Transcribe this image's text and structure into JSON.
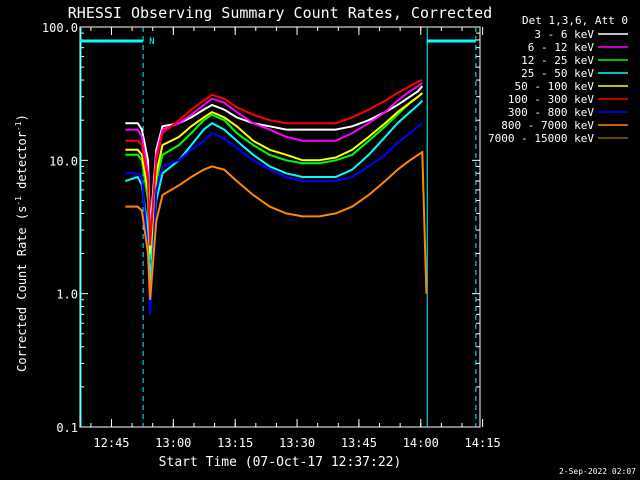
{
  "chart_data": {
    "type": "line",
    "title": "RHESSI Observing Summary Count Rates, Corrected",
    "xlabel": "Start Time (07-Oct-17 12:37:22)",
    "ylabel_main": "Corrected Count Rate (s",
    "ylabel_sup1": "-1",
    "ylabel_mid": " detector",
    "ylabel_sup2": "-1",
    "ylabel_end": ")",
    "y_scale": "log",
    "ylim": [
      0.1,
      100.0
    ],
    "y_ticks": [
      "0.1",
      "1.0",
      "10.0",
      "100.0"
    ],
    "x_ticks": [
      "12:45",
      "13:00",
      "13:15",
      "13:30",
      "13:45",
      "14:00",
      "14:15"
    ],
    "xlim_minutes_after_start": [
      0,
      97
    ],
    "legend_title": "Det 1,3,6, Att 0",
    "legend_position": "right",
    "timestamp": "2-Sep-2022 02:07",
    "markers": {
      "night_label": "N",
      "solid_lines_minutes": [
        0,
        84.2
      ],
      "dashed_lines_minutes": [
        15.3,
        96
      ]
    },
    "series": [
      {
        "name": "3 - 6 keV",
        "color": "#ffffff",
        "points": [
          [
            11,
            19
          ],
          [
            14,
            19
          ],
          [
            15,
            17
          ],
          [
            16.5,
            10
          ],
          [
            17,
            3
          ],
          [
            18.5,
            12
          ],
          [
            20,
            18
          ],
          [
            24,
            19
          ],
          [
            27,
            21
          ],
          [
            30,
            24
          ],
          [
            32,
            26
          ],
          [
            35,
            24
          ],
          [
            38,
            21
          ],
          [
            42,
            19
          ],
          [
            46,
            18
          ],
          [
            50,
            17
          ],
          [
            54,
            17
          ],
          [
            58,
            17
          ],
          [
            62,
            17
          ],
          [
            66,
            18
          ],
          [
            70,
            20
          ],
          [
            74,
            23
          ],
          [
            77,
            26
          ],
          [
            80,
            30
          ],
          [
            82,
            33
          ],
          [
            83,
            36
          ]
        ]
      },
      {
        "name": "6 - 12 keV",
        "color": "#ff00ff",
        "points": [
          [
            11,
            17
          ],
          [
            14,
            17
          ],
          [
            15,
            15
          ],
          [
            16.5,
            8
          ],
          [
            17,
            2.5
          ],
          [
            18.5,
            11
          ],
          [
            20,
            17
          ],
          [
            24,
            19
          ],
          [
            27,
            22
          ],
          [
            30,
            26
          ],
          [
            32,
            29
          ],
          [
            35,
            27
          ],
          [
            38,
            23
          ],
          [
            42,
            19
          ],
          [
            46,
            17
          ],
          [
            50,
            15
          ],
          [
            54,
            14
          ],
          [
            58,
            14
          ],
          [
            62,
            14
          ],
          [
            66,
            16
          ],
          [
            70,
            19
          ],
          [
            74,
            23
          ],
          [
            77,
            28
          ],
          [
            80,
            33
          ],
          [
            82,
            36
          ],
          [
            83,
            38
          ]
        ]
      },
      {
        "name": "12 - 25 keV",
        "color": "#00ff00",
        "points": [
          [
            11,
            11
          ],
          [
            14,
            11
          ],
          [
            15,
            10
          ],
          [
            16.5,
            5
          ],
          [
            17,
            1.8
          ],
          [
            18.5,
            7
          ],
          [
            20,
            11
          ],
          [
            24,
            13
          ],
          [
            27,
            16
          ],
          [
            30,
            20
          ],
          [
            32,
            22
          ],
          [
            35,
            20
          ],
          [
            38,
            16
          ],
          [
            42,
            13
          ],
          [
            46,
            11
          ],
          [
            50,
            10
          ],
          [
            54,
            9.5
          ],
          [
            58,
            9.5
          ],
          [
            62,
            10
          ],
          [
            66,
            11
          ],
          [
            70,
            14
          ],
          [
            74,
            18
          ],
          [
            77,
            22
          ],
          [
            80,
            27
          ],
          [
            82,
            30
          ],
          [
            83,
            32
          ]
        ]
      },
      {
        "name": "25 - 50 keV",
        "color": "#00ffff",
        "points": [
          [
            11,
            7
          ],
          [
            14,
            7.5
          ],
          [
            15,
            6.5
          ],
          [
            16.5,
            3
          ],
          [
            17,
            1.2
          ],
          [
            18.5,
            5
          ],
          [
            20,
            8
          ],
          [
            24,
            10
          ],
          [
            27,
            13
          ],
          [
            30,
            17
          ],
          [
            32,
            19
          ],
          [
            35,
            17
          ],
          [
            38,
            14
          ],
          [
            42,
            11
          ],
          [
            46,
            9
          ],
          [
            50,
            8
          ],
          [
            54,
            7.5
          ],
          [
            58,
            7.5
          ],
          [
            62,
            7.5
          ],
          [
            66,
            8.5
          ],
          [
            70,
            11
          ],
          [
            74,
            15
          ],
          [
            77,
            19
          ],
          [
            80,
            23
          ],
          [
            82,
            26
          ],
          [
            83,
            28
          ]
        ]
      },
      {
        "name": "50 - 100 keV",
        "color": "#ffff00",
        "points": [
          [
            11,
            12
          ],
          [
            14,
            12
          ],
          [
            15,
            11
          ],
          [
            16.5,
            6
          ],
          [
            17,
            2
          ],
          [
            18.5,
            8
          ],
          [
            20,
            13
          ],
          [
            24,
            15
          ],
          [
            27,
            18
          ],
          [
            30,
            21
          ],
          [
            32,
            23
          ],
          [
            35,
            21
          ],
          [
            38,
            18
          ],
          [
            42,
            14
          ],
          [
            46,
            12
          ],
          [
            50,
            11
          ],
          [
            54,
            10
          ],
          [
            58,
            10
          ],
          [
            62,
            10.5
          ],
          [
            66,
            12
          ],
          [
            70,
            15
          ],
          [
            74,
            19
          ],
          [
            77,
            23
          ],
          [
            80,
            27
          ],
          [
            82,
            30
          ],
          [
            83,
            32
          ]
        ]
      },
      {
        "name": "100 - 300 keV",
        "color": "#ff0000",
        "points": [
          [
            11,
            14
          ],
          [
            14,
            14
          ],
          [
            15,
            13
          ],
          [
            16.5,
            7
          ],
          [
            17,
            2.3
          ],
          [
            18.5,
            10
          ],
          [
            20,
            16
          ],
          [
            24,
            20
          ],
          [
            27,
            24
          ],
          [
            30,
            28
          ],
          [
            32,
            31
          ],
          [
            35,
            29
          ],
          [
            38,
            25
          ],
          [
            42,
            22
          ],
          [
            46,
            20
          ],
          [
            50,
            19
          ],
          [
            54,
            19
          ],
          [
            58,
            19
          ],
          [
            62,
            19
          ],
          [
            66,
            21
          ],
          [
            70,
            24
          ],
          [
            74,
            28
          ],
          [
            77,
            32
          ],
          [
            80,
            36
          ],
          [
            82,
            39
          ],
          [
            83,
            40
          ]
        ]
      },
      {
        "name": "300 - 800 keV",
        "color": "#0000ff",
        "points": [
          [
            11,
            8
          ],
          [
            14,
            8
          ],
          [
            15,
            7.5
          ],
          [
            16.5,
            2
          ],
          [
            17,
            0.7
          ],
          [
            18.5,
            6
          ],
          [
            20,
            9
          ],
          [
            24,
            10
          ],
          [
            27,
            12
          ],
          [
            30,
            14
          ],
          [
            32,
            16
          ],
          [
            35,
            14.5
          ],
          [
            38,
            12.5
          ],
          [
            42,
            10
          ],
          [
            46,
            8.5
          ],
          [
            50,
            7.5
          ],
          [
            54,
            7
          ],
          [
            58,
            7
          ],
          [
            62,
            7
          ],
          [
            66,
            7.5
          ],
          [
            70,
            9
          ],
          [
            74,
            11
          ],
          [
            77,
            13.5
          ],
          [
            80,
            16
          ],
          [
            82,
            18
          ],
          [
            83,
            19
          ]
        ]
      },
      {
        "name": "800 - 7000 keV",
        "color": "#ff8800",
        "points": [
          [
            11,
            4.5
          ],
          [
            14,
            4.5
          ],
          [
            15,
            4.2
          ],
          [
            16.5,
            2
          ],
          [
            17,
            0.9
          ],
          [
            18.5,
            3.5
          ],
          [
            20,
            5.5
          ],
          [
            24,
            6.5
          ],
          [
            27,
            7.5
          ],
          [
            30,
            8.5
          ],
          [
            32,
            9
          ],
          [
            35,
            8.5
          ],
          [
            38,
            7
          ],
          [
            42,
            5.5
          ],
          [
            46,
            4.5
          ],
          [
            50,
            4
          ],
          [
            54,
            3.8
          ],
          [
            58,
            3.8
          ],
          [
            62,
            4
          ],
          [
            66,
            4.5
          ],
          [
            70,
            5.5
          ],
          [
            74,
            7
          ],
          [
            77,
            8.5
          ],
          [
            80,
            10
          ],
          [
            82,
            11
          ],
          [
            83,
            11.5
          ],
          [
            84,
            1.0
          ]
        ]
      },
      {
        "name": "7000 - 15000 keV",
        "color": "#886600",
        "points": []
      }
    ]
  }
}
